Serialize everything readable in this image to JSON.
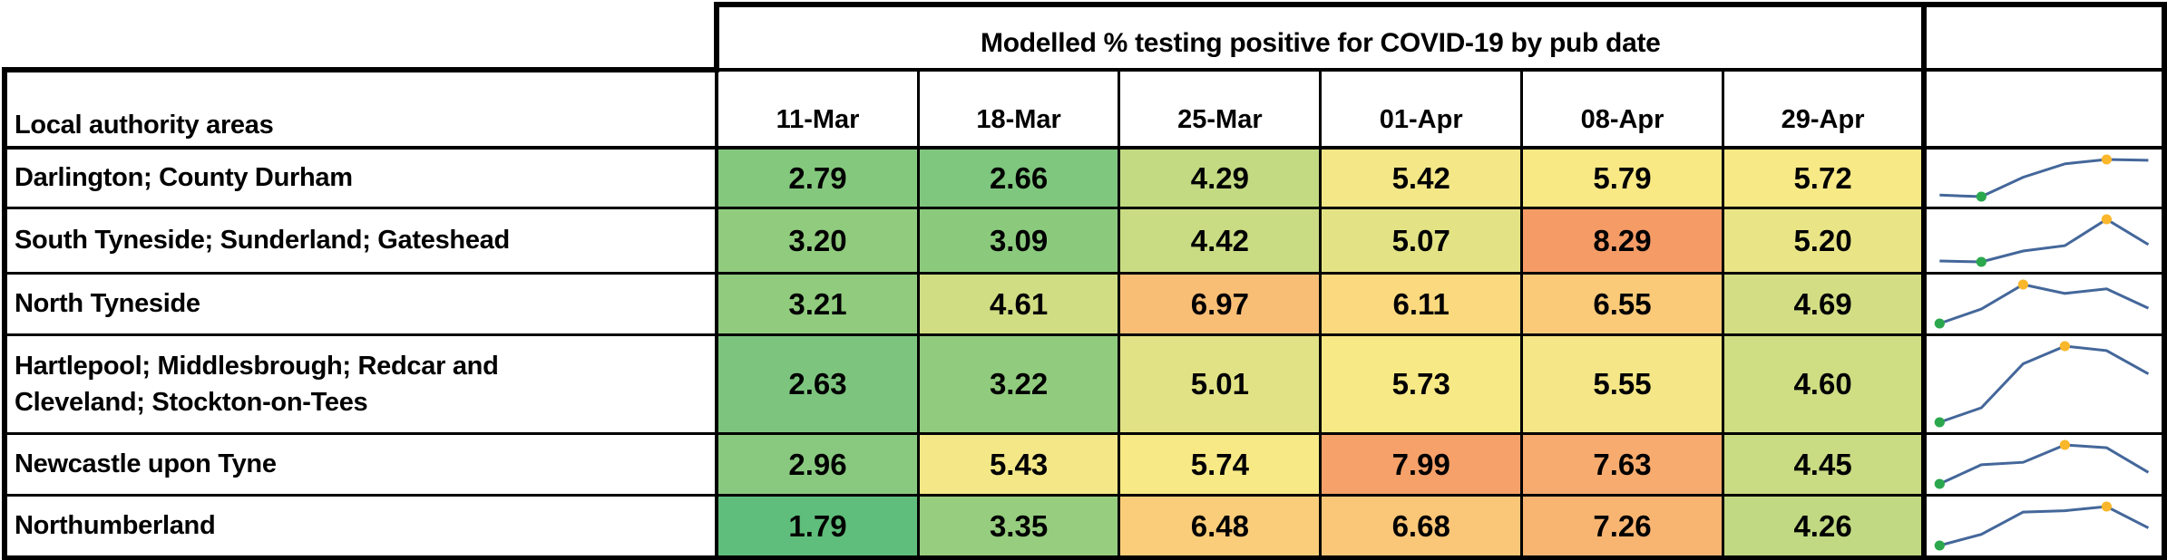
{
  "chart_data": {
    "type": "table",
    "title": "Modelled % testing positive for COVID-19 by pub date",
    "row_label_header": "Local authority areas",
    "columns": [
      "11-Mar",
      "18-Mar",
      "25-Mar",
      "01-Apr",
      "08-Apr",
      "29-Apr"
    ],
    "rows": [
      {
        "area": "Darlington; County Durham",
        "values": [
          "2.79",
          "2.66",
          "4.29",
          "5.42",
          "5.79",
          "5.72"
        ],
        "cell_colors": [
          "#84C87E",
          "#7FC67E",
          "#C3DA82",
          "#F3E787",
          "#F8E985",
          "#F7E985"
        ]
      },
      {
        "area": "South Tyneside; Sunderland; Gateshead",
        "values": [
          "3.20",
          "3.09",
          "4.42",
          "5.07",
          "8.29",
          "5.20"
        ],
        "cell_colors": [
          "#90CB7E",
          "#8BCA7D",
          "#C9DC83",
          "#E3E385",
          "#F59B66",
          "#E9E586"
        ]
      },
      {
        "area": "North Tyneside",
        "values": [
          "3.21",
          "4.61",
          "6.97",
          "6.11",
          "6.55",
          "4.69"
        ],
        "cell_colors": [
          "#90CB7E",
          "#D0DD83",
          "#F9BE75",
          "#FBD97E",
          "#FACA79",
          "#D3DE84"
        ]
      },
      {
        "area": "Hartlepool; Middlesbrough; Redcar and\nCleveland; Stockton-on-Tees",
        "values": [
          "2.63",
          "3.22",
          "5.01",
          "5.73",
          "5.55",
          "4.60"
        ],
        "cell_colors": [
          "#7DC57E",
          "#91CB7E",
          "#E1E285",
          "#F7E985",
          "#F5E787",
          "#CFDD83"
        ]
      },
      {
        "area": "Newcastle upon Tyne",
        "values": [
          "2.96",
          "5.43",
          "5.74",
          "7.99",
          "7.63",
          "4.45"
        ],
        "cell_colors": [
          "#89C97F",
          "#F3E787",
          "#F7E985",
          "#F6A169",
          "#F7AB6E",
          "#C9DB83"
        ]
      },
      {
        "area": "Northumberland",
        "values": [
          "1.79",
          "3.35",
          "6.48",
          "6.68",
          "7.26",
          "4.26"
        ],
        "cell_colors": [
          "#60BE7C",
          "#97CD7F",
          "#FACD7A",
          "#FAC678",
          "#F8B572",
          "#C1D982"
        ]
      }
    ],
    "heat_scale": {
      "low": "#63BE7B",
      "mid": "#FFEB84",
      "high": "#F59B66"
    },
    "sparkline": {
      "line_color": "#44679A",
      "low_marker_color": "#2BA84D",
      "high_marker_color": "#FAB72B"
    },
    "border_color": "#000000"
  }
}
